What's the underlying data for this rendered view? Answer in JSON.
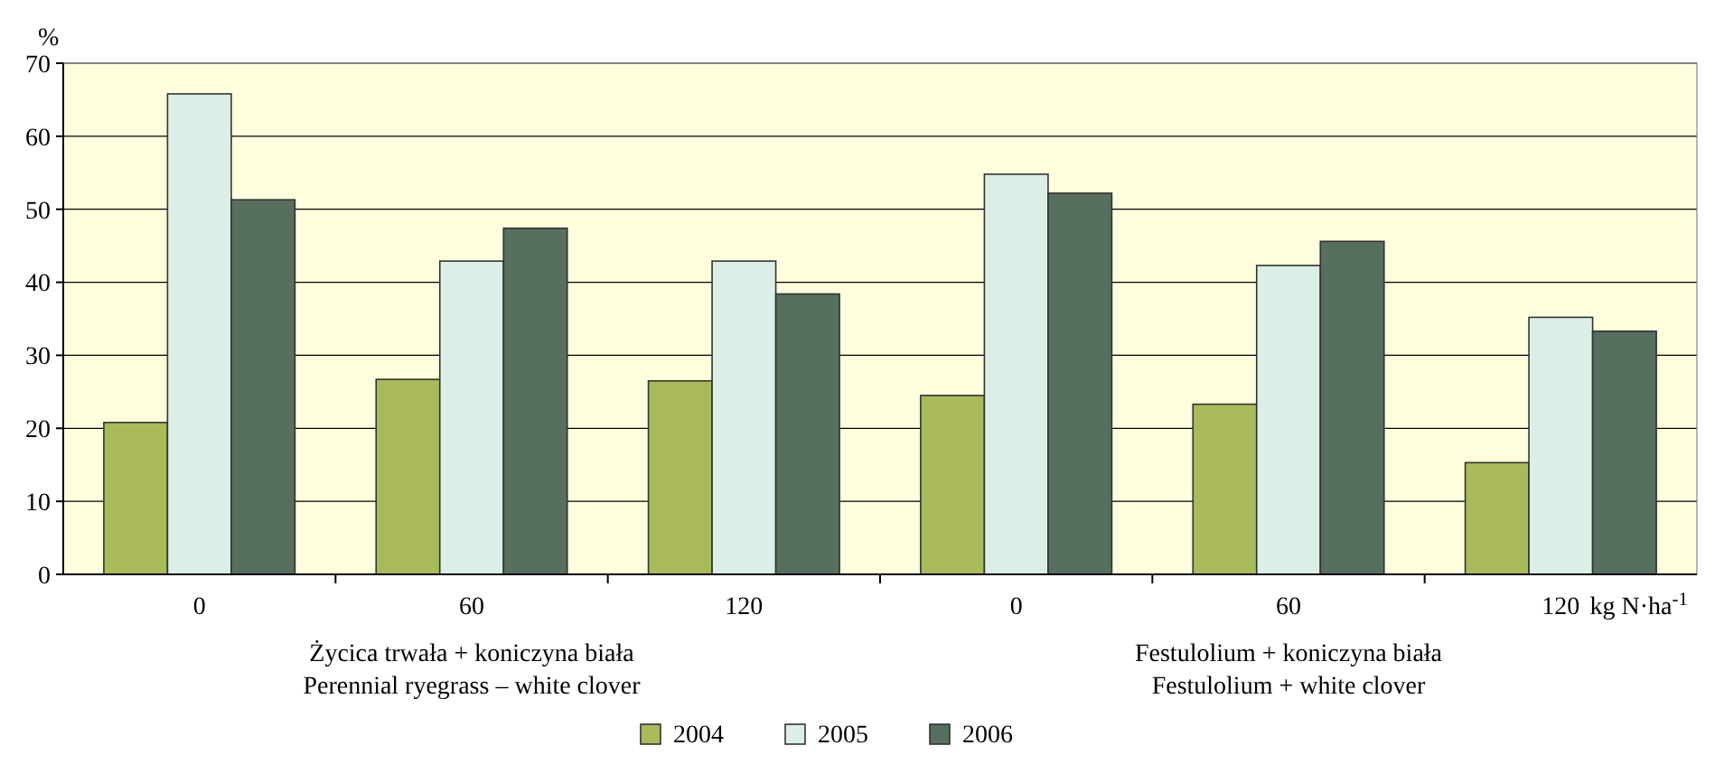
{
  "chart_data": {
    "type": "bar",
    "ylabel": "%",
    "xlabel": "kg N·ha$^{-1}$",
    "categories": [
      "0",
      "60",
      "120",
      "0",
      "60",
      "120"
    ],
    "series": [
      {
        "name": "2004",
        "color": "#a9bb59",
        "values": [
          20.8,
          26.7,
          26.5,
          24.5,
          23.3,
          15.3
        ]
      },
      {
        "name": "2005",
        "color": "#dcefe6",
        "values": [
          65.8,
          42.9,
          42.9,
          54.8,
          42.3,
          35.2
        ]
      },
      {
        "name": "2006",
        "color": "#566f5f",
        "values": [
          51.3,
          47.4,
          38.4,
          52.2,
          45.6,
          33.3
        ]
      }
    ],
    "ylim": [
      0,
      70
    ],
    "yticks": [
      0,
      10,
      20,
      30,
      40,
      50,
      60,
      70
    ],
    "grid": "y",
    "legend": "bottom",
    "annotations": [
      "Życica trwała + koniczyna biała",
      "Perennial ryegrass – white clover",
      "Festulolium + koniczyna biała",
      "Festulolium + white clover"
    ]
  }
}
